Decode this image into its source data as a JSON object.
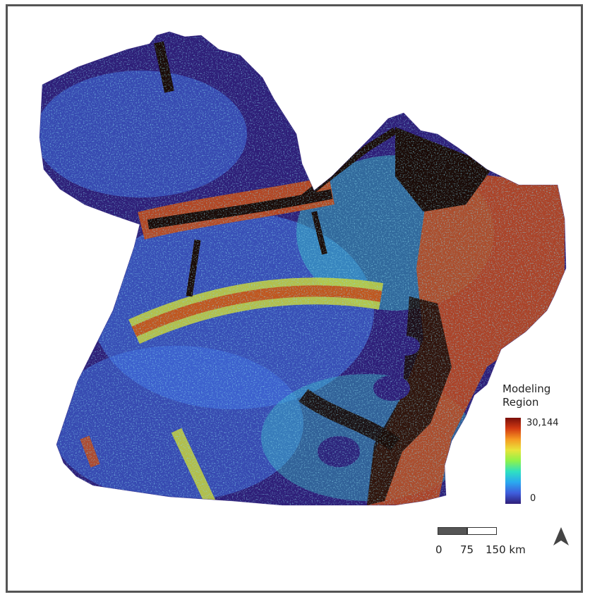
{
  "map": {
    "legend": {
      "title_line1": "Modeling",
      "title_line2": "Region",
      "max_label": "30,144",
      "min_label": "0",
      "color_ramp": [
        "#2e1e78",
        "#3f5ddc",
        "#2aa8f0",
        "#2ee0c2",
        "#8ef24a",
        "#e8e43a",
        "#f69a22",
        "#d33a12",
        "#7a0f0a"
      ]
    },
    "scale_bar": {
      "label_0": "0",
      "label_1": "75",
      "label_2": "150 km",
      "fill_color": "#555555"
    },
    "north_arrow": {
      "icon": "north-arrow-icon",
      "color": "#444444"
    },
    "colors": {
      "low": "#2e1e78",
      "mid_low": "#3f6fe0",
      "mid": "#36c6c8",
      "mid_high": "#c8d23a",
      "high": "#c14a1a",
      "very_high": "#1a0a06",
      "frame": "#555555"
    }
  }
}
